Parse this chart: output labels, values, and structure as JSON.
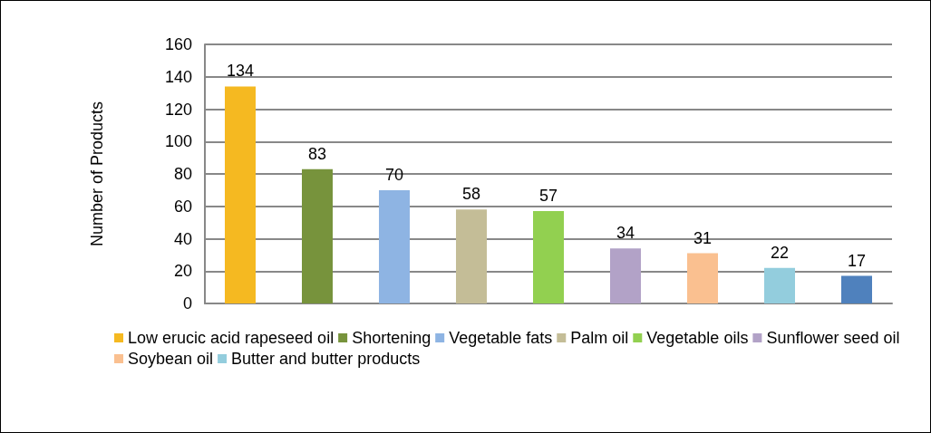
{
  "chart_data": {
    "type": "bar",
    "ylabel": "Number of Products",
    "categories": [
      null
    ],
    "series": [
      {
        "name": "Low erucic acid rapeseed oil",
        "color": "#f5b921",
        "values": [
          134
        ]
      },
      {
        "name": "Shortening",
        "color": "#77933c",
        "values": [
          83
        ]
      },
      {
        "name": "Vegetable fats",
        "color": "#8eb4e3",
        "values": [
          70
        ]
      },
      {
        "name": "Palm oil",
        "color": "#c4bd97",
        "values": [
          58
        ]
      },
      {
        "name": "Vegetable oils",
        "color": "#92d050",
        "values": [
          57
        ]
      },
      {
        "name": "Sunflower seed oil",
        "color": "#b2a2c7",
        "values": [
          34
        ]
      },
      {
        "name": "Soybean oil",
        "color": "#fac090",
        "values": [
          31
        ]
      },
      {
        "name": "Butter and butter products",
        "color": "#93cddd",
        "values": [
          22
        ]
      },
      {
        "color": "#4f81bd",
        "values": [
          17
        ]
      }
    ],
    "ylim": [
      0,
      160
    ],
    "yticks": [
      0,
      20,
      40,
      60,
      80,
      100,
      120,
      140,
      160
    ],
    "grid": "y",
    "legend": "bottom",
    "data_labels": true
  }
}
